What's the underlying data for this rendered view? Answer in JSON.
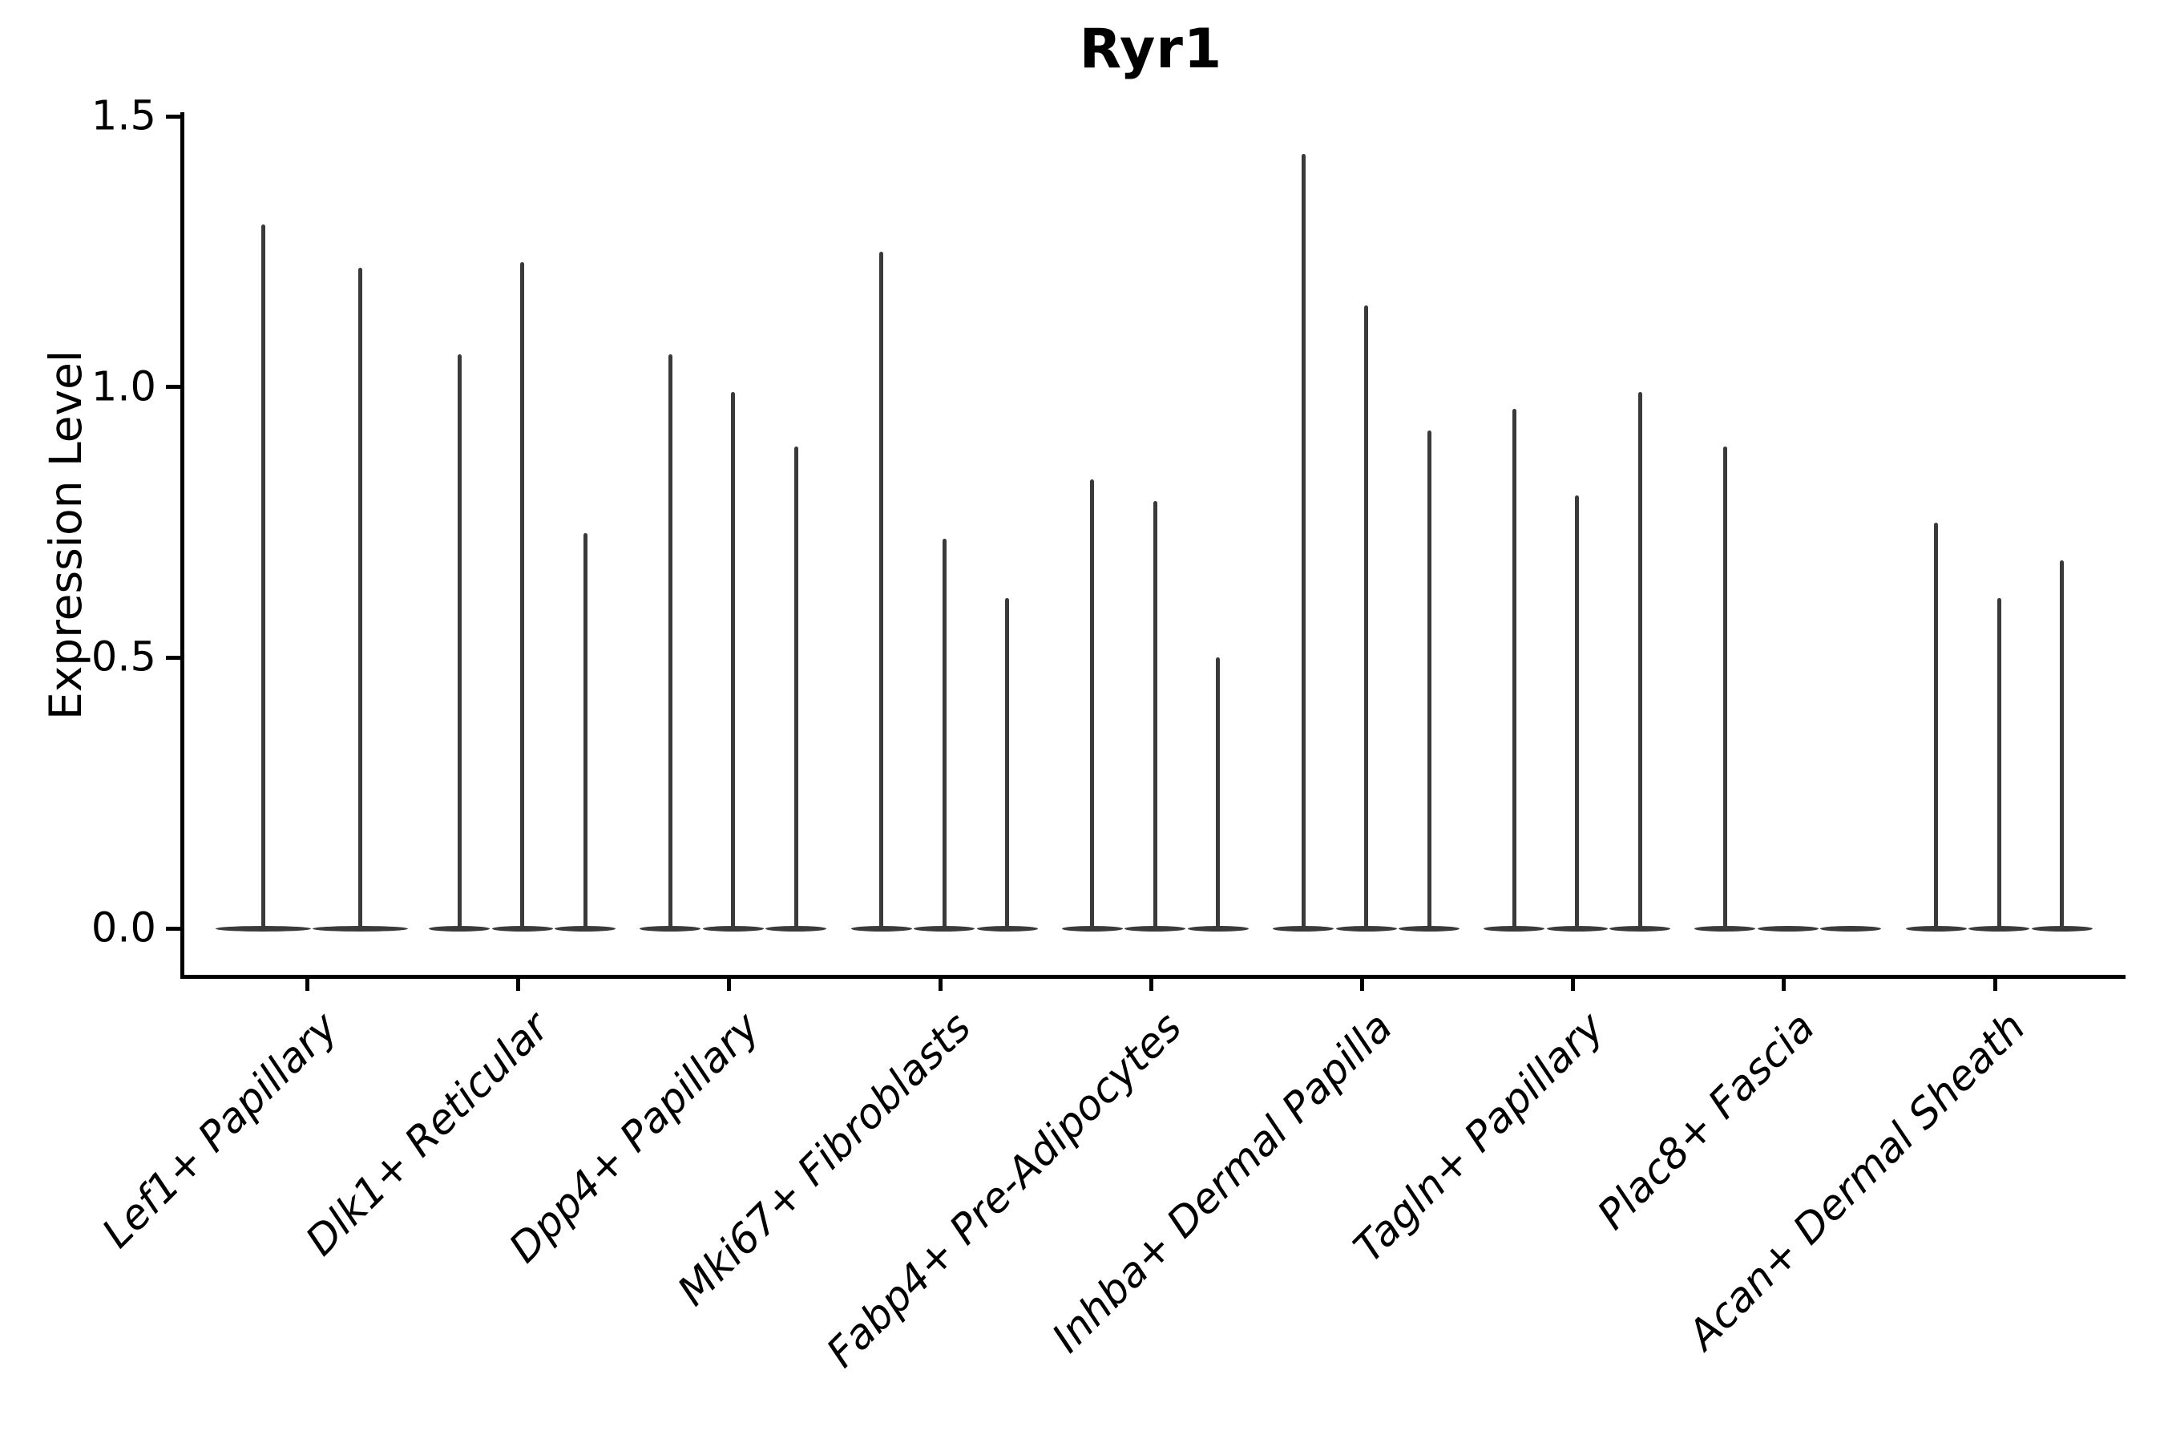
{
  "title": "Ryr1",
  "axes": {
    "ylabel": "Expression Level",
    "xlabel": ""
  },
  "chart_data": {
    "type": "violin",
    "title": "Ryr1",
    "ylabel": "Expression Level",
    "xlabel": "",
    "ytick_labels": [
      "0.0",
      "0.5",
      "1.0",
      "1.5"
    ],
    "ytick_values": [
      0.0,
      0.5,
      1.0,
      1.5
    ],
    "ylim": [
      -0.09,
      1.57
    ],
    "grid": false,
    "legend": false,
    "categories": [
      "Lef1+ Papillary",
      "Dlk1+ Reticular",
      "Dpp4+ Papillary",
      "Mki67+ Fibroblasts",
      "Fabp4+ Pre-Adipocytes",
      "Inhba+ Dermal Papilla",
      "Tagln+ Papillary",
      "Plac8+ Fascia",
      "Acan+ Dermal Sheath"
    ],
    "series_note": "each category holds 1-3 narrow violins (spike = max expression, wide flat base at 0); zeros are flat violins with no spike",
    "violin_max_per_category": [
      [
        1.3,
        1.22
      ],
      [
        1.06,
        1.23,
        0.73
      ],
      [
        1.06,
        0.99,
        0.89
      ],
      [
        1.25,
        0.72,
        0.61
      ],
      [
        0.83,
        0.79,
        0.5
      ],
      [
        1.43,
        1.15,
        0.92
      ],
      [
        0.96,
        0.8,
        0.99
      ],
      [
        0.89,
        0.0,
        0.0
      ],
      [
        0.75,
        0.61,
        0.68
      ]
    ],
    "colors": {
      "violin": "#3a3a3a",
      "spine": "#000000",
      "text": "#000000",
      "background": "#ffffff"
    }
  }
}
